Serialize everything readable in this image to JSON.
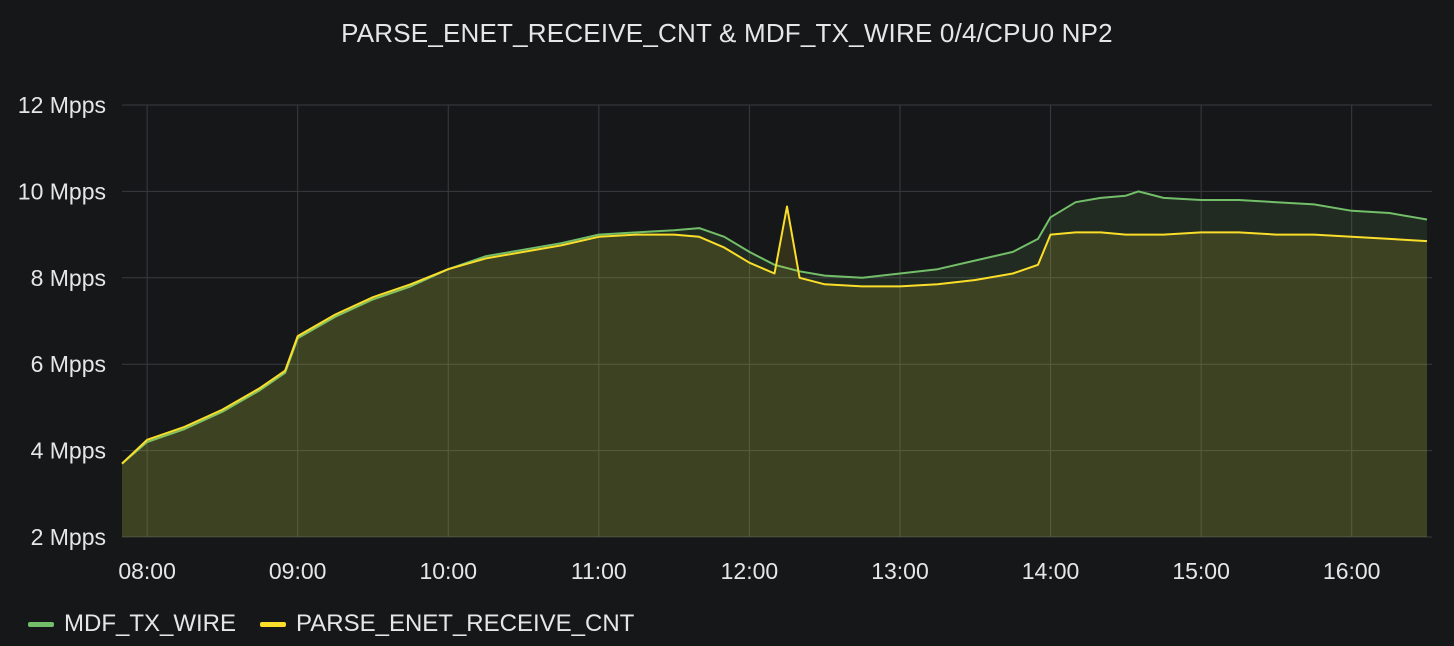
{
  "panel": {
    "title": "PARSE_ENET_RECEIVE_CNT & MDF_TX_WIRE 0/4/CPU0 NP2"
  },
  "chart_data": {
    "type": "area",
    "title": "PARSE_ENET_RECEIVE_CNT & MDF_TX_WIRE 0/4/CPU0 NP2",
    "xlabel": "",
    "ylabel": "",
    "x_ticks": [
      "08:00",
      "09:00",
      "10:00",
      "11:00",
      "12:00",
      "13:00",
      "14:00",
      "15:00",
      "16:00"
    ],
    "y_ticks": [
      "2 Mpps",
      "4 Mpps",
      "6 Mpps",
      "8 Mpps",
      "10 Mpps",
      "12 Mpps"
    ],
    "y_tick_values": [
      2,
      4,
      6,
      8,
      10,
      12
    ],
    "ylim": [
      2,
      12
    ],
    "xlim": [
      "07:50",
      "16:32"
    ],
    "grid": true,
    "legend_position": "bottom-left",
    "y_unit": "Mpps",
    "series": [
      {
        "name": "MDF_TX_WIRE",
        "color": "#73bf69",
        "x": [
          "07:50",
          "08:00",
          "08:15",
          "08:30",
          "08:45",
          "08:55",
          "09:00",
          "09:15",
          "09:30",
          "09:45",
          "10:00",
          "10:15",
          "10:30",
          "10:45",
          "11:00",
          "11:15",
          "11:30",
          "11:40",
          "11:50",
          "12:00",
          "12:10",
          "12:20",
          "12:30",
          "12:45",
          "13:00",
          "13:15",
          "13:30",
          "13:45",
          "13:55",
          "14:00",
          "14:10",
          "14:20",
          "14:30",
          "14:35",
          "14:45",
          "15:00",
          "15:15",
          "15:30",
          "15:45",
          "16:00",
          "16:15",
          "16:30"
        ],
        "values": [
          3.7,
          4.2,
          4.5,
          4.9,
          5.4,
          5.8,
          6.6,
          7.1,
          7.5,
          7.8,
          8.2,
          8.5,
          8.65,
          8.8,
          9.0,
          9.05,
          9.1,
          9.15,
          8.95,
          8.6,
          8.3,
          8.15,
          8.05,
          8.0,
          8.1,
          8.2,
          8.4,
          8.6,
          8.9,
          9.4,
          9.75,
          9.85,
          9.9,
          10.0,
          9.85,
          9.8,
          9.8,
          9.75,
          9.7,
          9.55,
          9.5,
          9.35
        ]
      },
      {
        "name": "PARSE_ENET_RECEIVE_CNT",
        "color": "#fade2a",
        "x": [
          "07:50",
          "08:00",
          "08:15",
          "08:30",
          "08:45",
          "08:55",
          "09:00",
          "09:15",
          "09:30",
          "09:45",
          "10:00",
          "10:15",
          "10:30",
          "10:45",
          "11:00",
          "11:15",
          "11:30",
          "11:40",
          "11:50",
          "12:00",
          "12:10",
          "12:15",
          "12:20",
          "12:30",
          "12:45",
          "13:00",
          "13:15",
          "13:30",
          "13:45",
          "13:55",
          "14:00",
          "14:10",
          "14:20",
          "14:30",
          "14:45",
          "15:00",
          "15:15",
          "15:30",
          "15:45",
          "16:00",
          "16:15",
          "16:30"
        ],
        "values": [
          3.7,
          4.25,
          4.55,
          4.95,
          5.45,
          5.85,
          6.65,
          7.15,
          7.55,
          7.85,
          8.2,
          8.45,
          8.6,
          8.75,
          8.95,
          9.0,
          9.0,
          8.95,
          8.7,
          8.35,
          8.1,
          9.65,
          8.0,
          7.85,
          7.8,
          7.8,
          7.85,
          7.95,
          8.1,
          8.3,
          9.0,
          9.05,
          9.05,
          9.0,
          9.0,
          9.05,
          9.05,
          9.0,
          9.0,
          8.95,
          8.9,
          8.85
        ]
      }
    ]
  }
}
